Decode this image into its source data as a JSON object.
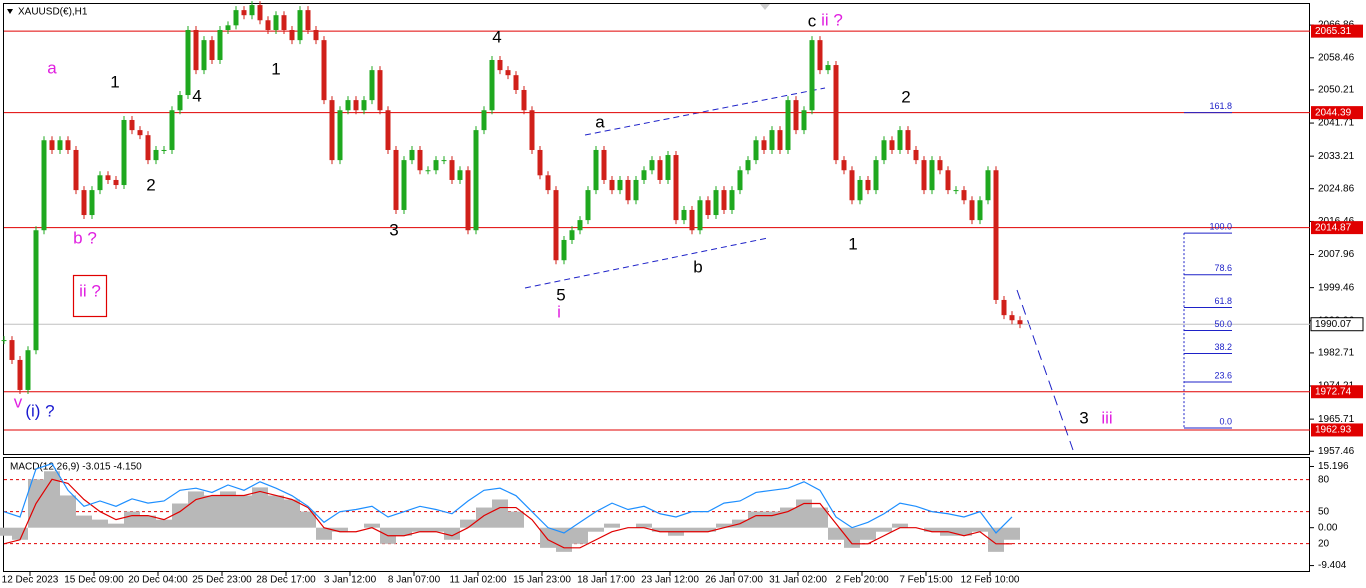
{
  "chart_data": [
    {
      "type": "candlestick",
      "title": "XAUUSD(€),H1",
      "ylim": [
        1956.5,
        2073.3
      ],
      "yticks": [
        2066.86,
        2058.46,
        2050.21,
        2041.71,
        2033.21,
        2024.86,
        2016.46,
        2007.96,
        1999.46,
        1990.96,
        1982.71,
        1974.21,
        1965.71,
        1957.46
      ],
      "xlim": [
        -0.5,
        163.25
      ],
      "xticks": [
        {
          "value": 3.25,
          "label": "12 Dec 2023"
        },
        {
          "value": 11.25,
          "label": "15 Dec 09:00"
        },
        {
          "value": 19.25,
          "label": "20 Dec 04:00"
        },
        {
          "value": 27.25,
          "label": "25 Dec 23:00"
        },
        {
          "value": 35.25,
          "label": "28 Dec 17:00"
        },
        {
          "value": 43.25,
          "label": "3 Jan 12:00"
        },
        {
          "value": 51.25,
          "label": "8 Jan 07:00"
        },
        {
          "value": 59.25,
          "label": "11 Jan 02:00"
        },
        {
          "value": 67.25,
          "label": "15 Jan 23:00"
        },
        {
          "value": 75.25,
          "label": "18 Jan 17:00"
        },
        {
          "value": 83.25,
          "label": "23 Jan 12:00"
        },
        {
          "value": 91.25,
          "label": "26 Jan 07:00"
        },
        {
          "value": 99.25,
          "label": "31 Jan 02:00"
        },
        {
          "value": 107.25,
          "label": "2 Feb 20:00"
        },
        {
          "value": 115.25,
          "label": "7 Feb 15:00"
        },
        {
          "value": 123.25,
          "label": "12 Feb 10:00"
        }
      ],
      "up_color": "#1fa81f",
      "down_color": "#d0201a",
      "values": [
        1986.0,
        1980.9,
        1973.2,
        1983.4,
        2014.2,
        2037.3,
        2034.8,
        2037.3,
        2034.8,
        2024.5,
        2018.1,
        2024.5,
        2028.3,
        2027.1,
        2025.8,
        2042.5,
        2039.9,
        2038.6,
        2032.2,
        2034.8,
        2034.8,
        2045.0,
        2048.9,
        2065.6,
        2055.3,
        2063.0,
        2057.9,
        2065.6,
        2066.8,
        2070.7,
        2069.4,
        2072.0,
        2068.1,
        2065.6,
        2069.4,
        2065.6,
        2063.0,
        2070.7,
        2065.6,
        2063.0,
        2047.6,
        2032.2,
        2045.0,
        2047.6,
        2045.0,
        2047.6,
        2055.3,
        2045.0,
        2034.8,
        2019.4,
        2032.2,
        2034.8,
        2029.6,
        2029.6,
        2032.2,
        2032.2,
        2027.1,
        2029.6,
        2014.2,
        2039.9,
        2045.0,
        2057.9,
        2055.3,
        2054.0,
        2050.2,
        2045.0,
        2034.8,
        2028.3,
        2024.5,
        2006.5,
        2011.7,
        2014.2,
        2016.8,
        2024.5,
        2034.8,
        2027.1,
        2024.5,
        2027.1,
        2021.9,
        2027.1,
        2029.6,
        2032.2,
        2027.1,
        2033.5,
        2016.8,
        2019.4,
        2014.2,
        2021.9,
        2018.1,
        2024.5,
        2019.4,
        2024.5,
        2029.6,
        2032.2,
        2037.3,
        2034.8,
        2039.9,
        2034.8,
        2047.6,
        2039.9,
        2045.0,
        2063.0,
        2055.3,
        2056.6,
        2032.2,
        2029.6,
        2021.9,
        2027.1,
        2024.5,
        2032.2,
        2037.3,
        2034.8,
        2039.9,
        2034.8,
        2032.2,
        2024.5,
        2032.2,
        2029.6,
        2024.5,
        2024.5,
        2021.9,
        2016.8,
        2021.9,
        2029.6,
        1996.3,
        1992.4,
        1991.1,
        1990.1
      ],
      "levels": {
        "color": "#e00000",
        "values": [
          2065.31,
          2044.39,
          2014.87,
          1972.74,
          1962.93
        ]
      },
      "current_price": {
        "color": "#c0c0c0",
        "value": 1990.07
      },
      "fibonacci": {
        "color": "#1e22c8",
        "base": 1963.44,
        "top": 2013.47,
        "levels": [
          161.8,
          {
            "value": 100,
            "label": "100.0"
          },
          78.6,
          61.8,
          {
            "value": 50,
            "label": "50.0"
          },
          38.2,
          23.6,
          {
            "value": 0,
            "label": "0.0"
          }
        ]
      },
      "annotations": [
        {
          "text": "a",
          "color": "#e020e0"
        },
        {
          "text": "1",
          "color": "#000000"
        },
        {
          "text": "4",
          "color": "#000000"
        },
        {
          "text": "2",
          "color": "#000000"
        },
        {
          "text": "1",
          "color": "#000000"
        },
        {
          "text": "b ?",
          "color": "#e020e0"
        },
        {
          "text": "ii ?",
          "color": "#e020e0"
        },
        {
          "text": "v",
          "color": "#e020e0"
        },
        {
          "text": "(i) ?",
          "color": "#1a1ad0"
        },
        {
          "text": "3",
          "color": "#000000"
        },
        {
          "text": "4",
          "color": "#000000"
        },
        {
          "text": "a",
          "color": "#000000"
        },
        {
          "text": "5",
          "color": "#000000"
        },
        {
          "text": "i",
          "color": "#e020e0"
        },
        {
          "text": "b",
          "color": "#000000"
        },
        {
          "text": "c",
          "color": "#000000"
        },
        {
          "text": "ii ?",
          "color": "#e020e0"
        },
        {
          "text": "2",
          "color": "#000000"
        },
        {
          "text": "1",
          "color": "#000000"
        },
        {
          "text": "3",
          "color": "#000000"
        },
        {
          "text": "iii",
          "color": "#e020e0"
        }
      ]
    },
    {
      "type": "macd",
      "title": "MACD(12,26,9) -3.015 -4.150",
      "ylim": [
        -11,
        17.3
      ],
      "yticks": [
        15.196,
        {
          "value": 0,
          "label": "0.00"
        },
        -9.404
      ],
      "histogram": {
        "color": "#b8b8b8",
        "values": [
          -2,
          -3,
          12,
          14,
          8,
          3,
          2,
          1,
          4,
          3,
          2,
          6,
          9,
          8,
          9,
          8,
          10,
          8,
          7,
          4,
          -3,
          -1,
          0,
          1,
          -4,
          -2,
          -1,
          -1,
          -3,
          2,
          5,
          7,
          4,
          0,
          -5,
          -6,
          -4,
          -1,
          1,
          0,
          1,
          -1,
          -2,
          -1,
          -1,
          1,
          2,
          4,
          4,
          5,
          7,
          5,
          -3,
          -5,
          -3,
          -1,
          1,
          0,
          -1,
          -2,
          -2,
          -1,
          -6,
          -3
        ]
      },
      "series": [
        {
          "color": "#e00000",
          "values": [
            -4,
            -3,
            6,
            12,
            11,
            7,
            4,
            2,
            3,
            3,
            2,
            4,
            7,
            8,
            8,
            8,
            9,
            8,
            7,
            5,
            0,
            -1,
            -1,
            0,
            -2,
            -2,
            -1,
            -1,
            -2,
            0,
            3,
            5,
            5,
            2,
            -3,
            -5,
            -5,
            -3,
            -1,
            0,
            0,
            -1,
            -1,
            -1,
            -1,
            0,
            1,
            3,
            3,
            4,
            6,
            6,
            1,
            -4,
            -4,
            -2,
            0,
            0,
            -1,
            -1,
            -2,
            -1,
            -4,
            -4
          ]
        },
        {
          "color": "#1e8fff",
          "axis": "y2",
          "values": [
            50,
            45,
            90,
            95,
            70,
            55,
            60,
            55,
            62,
            58,
            60,
            70,
            72,
            68,
            75,
            70,
            78,
            72,
            65,
            55,
            40,
            50,
            52,
            55,
            45,
            50,
            55,
            52,
            48,
            60,
            70,
            72,
            65,
            50,
            35,
            30,
            40,
            50,
            58,
            52,
            55,
            48,
            45,
            50,
            50,
            58,
            60,
            68,
            70,
            72,
            78,
            70,
            45,
            35,
            40,
            48,
            58,
            55,
            50,
            48,
            45,
            50,
            30,
            45
          ]
        }
      ],
      "y2lim": [
        -6.6,
        100.3
      ],
      "y2ticks": [
        80,
        50,
        20
      ],
      "y2_level_color": "#e00000"
    }
  ]
}
